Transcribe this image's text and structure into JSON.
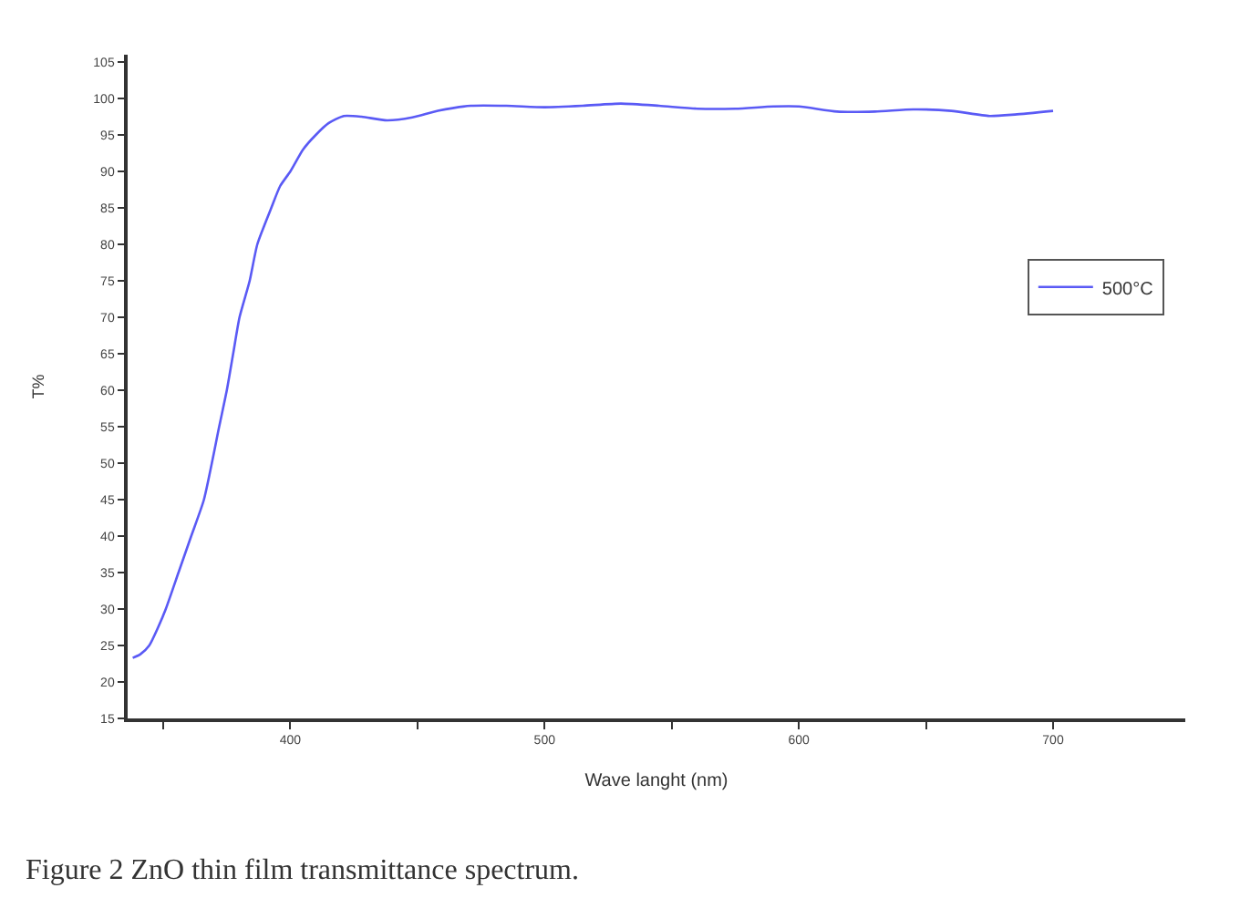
{
  "chart_data": {
    "type": "line",
    "xlabel": "Wave langht (nm)",
    "ylabel": "T%",
    "annotations": [
      "Figure 2 ZnO thin film transmittance spectrum."
    ],
    "xlim": [
      336,
      752
    ],
    "ylim": [
      15,
      106
    ],
    "xticks": [
      {
        "value": 350,
        "label": null
      },
      400,
      {
        "value": 450,
        "label": null
      },
      500,
      {
        "value": 550,
        "label": null
      },
      600,
      {
        "value": 650,
        "label": null
      },
      700
    ],
    "yticks": [
      15,
      20,
      25,
      30,
      35,
      40,
      45,
      50,
      55,
      60,
      65,
      70,
      75,
      80,
      85,
      90,
      95,
      100,
      105
    ],
    "legend": "right",
    "line_style": "solid",
    "marker": "none",
    "series": [
      {
        "name": "500°C",
        "color": "#5a5af5",
        "x": [
          338,
          341,
          344.5,
          348,
          351,
          356,
          361,
          366,
          372,
          375,
          377.5,
          380,
          384,
          387,
          392.5,
          396,
          400,
          405,
          410,
          415,
          421,
          428,
          438,
          448,
          458,
          471,
          485,
          500,
          515,
          530,
          545,
          560,
          575,
          590,
          600,
          615,
          630,
          645,
          660,
          675,
          685,
          700
        ],
        "values": [
          23.3,
          23.8,
          25,
          27.5,
          30,
          35,
          40,
          45,
          55,
          60,
          65,
          70,
          75,
          80,
          85,
          88,
          90,
          93,
          95,
          96.6,
          97.6,
          97.5,
          97,
          97.4,
          98.3,
          99,
          99,
          98.8,
          99,
          99.3,
          99,
          98.6,
          98.6,
          98.9,
          98.9,
          98.2,
          98.2,
          98.5,
          98.3,
          97.6,
          97.8,
          98.3
        ]
      }
    ]
  }
}
